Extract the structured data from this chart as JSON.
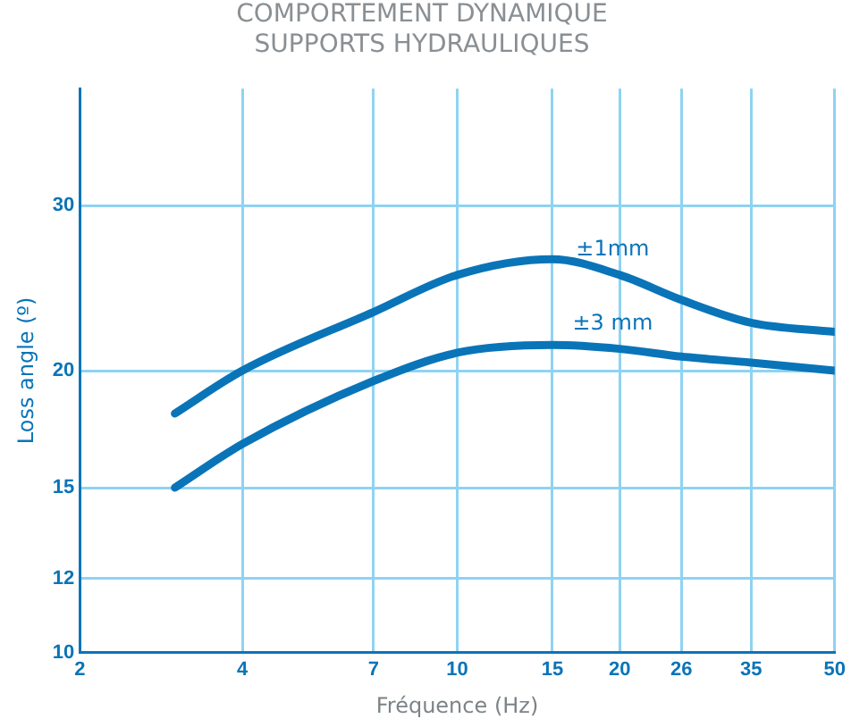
{
  "chart_data": {
    "type": "line",
    "title": "COMPORTEMENT DYNAMIQUE\nSUPPORTS HYDRAULIQUES",
    "xlabel": "Fréquence (Hz)",
    "ylabel": "Loss angle (º)",
    "x": [
      3,
      4,
      7,
      10,
      15,
      20,
      26,
      35,
      50
    ],
    "series": [
      {
        "name": "±1mm",
        "color": "#0a74b8",
        "values": [
          18.0,
          20.0,
          23.1,
          25.3,
          26.3,
          25.3,
          23.8,
          22.5,
          22.0
        ]
      },
      {
        "name": "±3 mm",
        "color": "#0a74b8",
        "values": [
          15.0,
          16.7,
          19.5,
          20.9,
          21.3,
          21.1,
          20.7,
          20.4,
          20.0
        ]
      }
    ],
    "log": "xy",
    "xlim": [
      2,
      50
    ],
    "xticks": [
      2,
      4,
      7,
      10,
      15,
      20,
      26,
      35,
      50
    ],
    "ylim": [
      10,
      40
    ],
    "yticks": [
      10,
      12,
      15,
      20,
      30
    ],
    "grid": true,
    "legend": false,
    "marker": "none",
    "line_style": "solid"
  }
}
